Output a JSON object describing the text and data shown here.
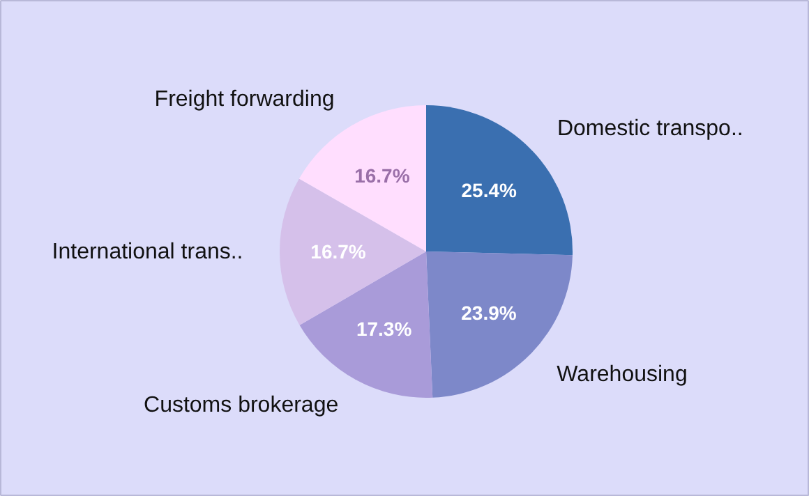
{
  "chart_data": {
    "type": "pie",
    "categories": [
      "Domestic transpo..",
      "Warehousing",
      "Customs brokerage",
      "International trans..",
      "Freight forwarding"
    ],
    "values": [
      25.4,
      23.9,
      17.3,
      16.7,
      16.7
    ],
    "value_labels": [
      "25.4%",
      "23.9%",
      "17.3%",
      "16.7%",
      "16.7%"
    ],
    "colors": [
      "#3a6fb0",
      "#7d88c9",
      "#a99bd9",
      "#d5c0ea",
      "#ffdefe"
    ]
  }
}
